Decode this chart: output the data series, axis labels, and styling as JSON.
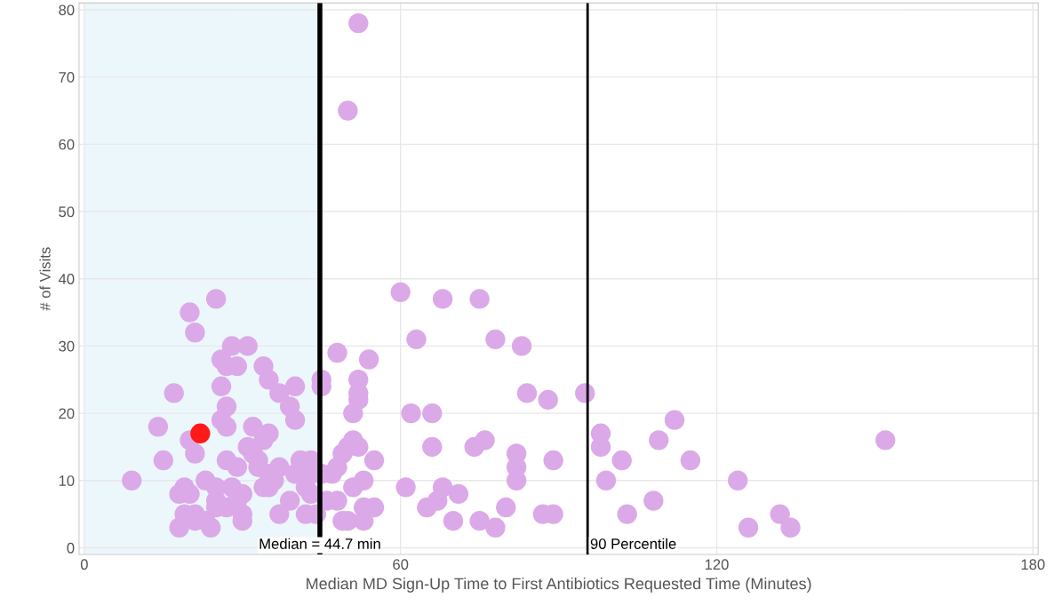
{
  "chart_data": {
    "type": "scatter",
    "xlabel": "Median MD Sign-Up Time to First Antibiotics Requested Time (Minutes)",
    "ylabel": "# of Visits",
    "series": [
      {
        "color": "#dba9e8",
        "x": [
          9,
          14,
          15,
          17,
          18,
          18,
          19,
          19,
          20,
          20,
          20,
          21,
          21,
          21,
          21,
          23,
          23,
          24,
          25,
          25,
          25,
          25,
          26,
          26,
          26,
          27,
          27,
          27,
          27,
          27,
          28,
          28,
          29,
          29,
          29,
          30,
          30,
          30,
          31,
          31,
          32,
          32,
          33,
          33,
          34,
          34,
          34,
          35,
          35,
          35,
          35,
          36,
          37,
          37,
          37,
          39,
          39,
          40,
          40,
          40,
          41,
          42,
          42,
          43,
          43,
          43,
          44,
          45,
          45,
          45,
          46,
          47,
          48,
          48,
          48,
          49,
          49,
          50,
          50,
          50,
          51,
          51,
          51,
          52,
          52,
          52,
          52,
          53,
          53,
          53,
          52,
          54,
          55,
          55,
          60,
          61,
          62,
          63,
          65,
          66,
          66,
          67,
          68,
          68,
          70,
          71,
          74,
          75,
          75,
          76,
          78,
          78,
          80,
          82,
          82,
          82,
          83,
          84,
          87,
          88,
          89,
          89,
          95,
          98,
          98,
          99,
          102,
          103,
          108,
          109,
          112,
          115,
          124,
          126,
          132,
          134,
          152
        ],
        "values": [
          10,
          18,
          13,
          23,
          8,
          3,
          5,
          9,
          8,
          35,
          16,
          14,
          32,
          5,
          4,
          10,
          4,
          3,
          37,
          9,
          6,
          7,
          24,
          28,
          19,
          27,
          21,
          18,
          13,
          6,
          30,
          9,
          12,
          7,
          27,
          8,
          5,
          4,
          30,
          15,
          18,
          14,
          12,
          13,
          27,
          16,
          9,
          17,
          25,
          11,
          9,
          10,
          23,
          5,
          12,
          21,
          7,
          19,
          24,
          11,
          13,
          9,
          5,
          13,
          8,
          11,
          5,
          25,
          24,
          11,
          7,
          11,
          29,
          7,
          12,
          14,
          4,
          65,
          15,
          4,
          16,
          20,
          9,
          23,
          22,
          25,
          15,
          10,
          6,
          4,
          78,
          28,
          6,
          13,
          38,
          9,
          20,
          31,
          6,
          20,
          15,
          7,
          37,
          9,
          4,
          8,
          15,
          4,
          37,
          16,
          3,
          31,
          6,
          10,
          12,
          14,
          30,
          23,
          5,
          22,
          5,
          13,
          23,
          17,
          15,
          10,
          13,
          5,
          7,
          16,
          19,
          13,
          10,
          3,
          5,
          3,
          16
        ]
      },
      {
        "color": "#ff1a1a",
        "x": [
          22
        ],
        "values": [
          17
        ]
      }
    ],
    "xlim": [
      -1,
      181
    ],
    "ylim": [
      -1,
      81
    ],
    "xticks": [
      0,
      60,
      120,
      180
    ],
    "yticks": [
      0,
      10,
      20,
      30,
      40,
      50,
      60,
      70,
      80
    ],
    "grid": true,
    "marker": "circle",
    "bands": [
      {
        "axis": "x",
        "from": 0,
        "to": 44.7,
        "color": "#ecf7fc"
      }
    ],
    "ref_lines": [
      {
        "axis": "x",
        "value": 44.7,
        "label": "Median = 44.7 min",
        "color": "#000000"
      },
      {
        "axis": "x",
        "value": 95.5,
        "label": "90 Percentile",
        "color": "#000000"
      }
    ]
  }
}
